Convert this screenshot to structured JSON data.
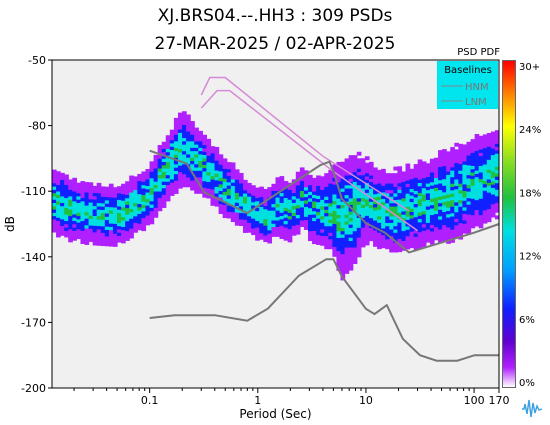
{
  "header": {
    "title": "XJ.BRS04.--.HH3 : 309 PSDs",
    "date_range": "27-MAR-2025 / 02-APR-2025"
  },
  "colorbar": {
    "title": "PSD PDF",
    "ticks": [
      "30+",
      "24%",
      "18%",
      "12%",
      "6%",
      "0%"
    ]
  },
  "legend": {
    "title": "Baselines",
    "items": [
      "HNM",
      "LNM"
    ],
    "bg_color": "#00e5ee"
  },
  "chart_data": {
    "type": "heatmap",
    "xlabel": "Period (Sec)",
    "ylabel": "dB",
    "xscale": "log",
    "xlim": [
      0.0125,
      170
    ],
    "ylim": [
      -200,
      -50
    ],
    "xticks": [
      {
        "value": 0.1,
        "label": "0.1"
      },
      {
        "value": 1,
        "label": "1"
      },
      {
        "value": 10,
        "label": "10"
      },
      {
        "value": 100,
        "label": "100"
      },
      {
        "value": 170,
        "label": "170"
      }
    ],
    "yticks": [
      -50,
      -80,
      -110,
      -140,
      -170,
      -200
    ],
    "colormap": [
      "#ffffff",
      "#b020ff",
      "#1020ff",
      "#00e0e0",
      "#20c040",
      "#ffff00",
      "#ff8000",
      "#ff0000"
    ],
    "hnm": {
      "name": "HNM",
      "period": [
        0.1,
        0.22,
        0.32,
        0.8,
        3.8,
        4.6,
        5,
        6,
        10,
        15,
        25,
        100,
        170
      ],
      "db": [
        -91.5,
        -97.4,
        -110.5,
        -120,
        -98,
        -96.5,
        -101,
        -113.5,
        -124.6,
        -129,
        -138,
        -129,
        -125
      ]
    },
    "lnm": {
      "name": "LNM",
      "period": [
        0.1,
        0.17,
        0.4,
        0.8,
        1.24,
        2.4,
        4.3,
        5,
        6,
        10,
        12,
        15.6,
        21.9,
        31.6,
        45,
        70,
        101,
        170
      ],
      "db": [
        -168,
        -166.7,
        -166.7,
        -169.2,
        -163.7,
        -148.6,
        -141.1,
        -141.1,
        -149,
        -163.8,
        -166.2,
        -162.1,
        -177.5,
        -185,
        -187.5,
        -187.5,
        -185,
        -185
      ]
    },
    "background_lines": [
      {
        "period": [
          0.3,
          0.36,
          0.5,
          4,
          25
        ],
        "db": [
          -66,
          -58,
          -58,
          -94,
          -119
        ]
      },
      {
        "period": [
          0.3,
          0.42,
          0.55,
          5,
          30
        ],
        "db": [
          -72,
          -64,
          -64,
          -101,
          -128
        ]
      }
    ],
    "pdf_mode": {
      "period": [
        0.0125,
        0.025,
        0.05,
        0.1,
        0.15,
        0.2,
        0.3,
        0.5,
        0.8,
        1.2,
        1.6,
        2,
        2.6,
        3.2,
        4,
        5,
        6,
        8,
        10,
        15,
        20,
        40,
        70,
        100,
        170
      ],
      "db": [
        -114,
        -120,
        -121,
        -112,
        -98,
        -90,
        -97,
        -108,
        -117,
        -122,
        -117,
        -119,
        -113,
        -118,
        -119,
        -119,
        -123,
        -118,
        -114,
        -119,
        -119,
        -114,
        -111,
        -106,
        -102
      ],
      "spread_db": [
        8,
        7,
        7,
        7,
        8,
        9,
        7,
        7,
        6,
        6,
        7,
        7,
        7,
        8,
        8,
        11,
        14,
        13,
        10,
        9,
        10,
        10,
        11,
        11,
        10
      ]
    }
  }
}
